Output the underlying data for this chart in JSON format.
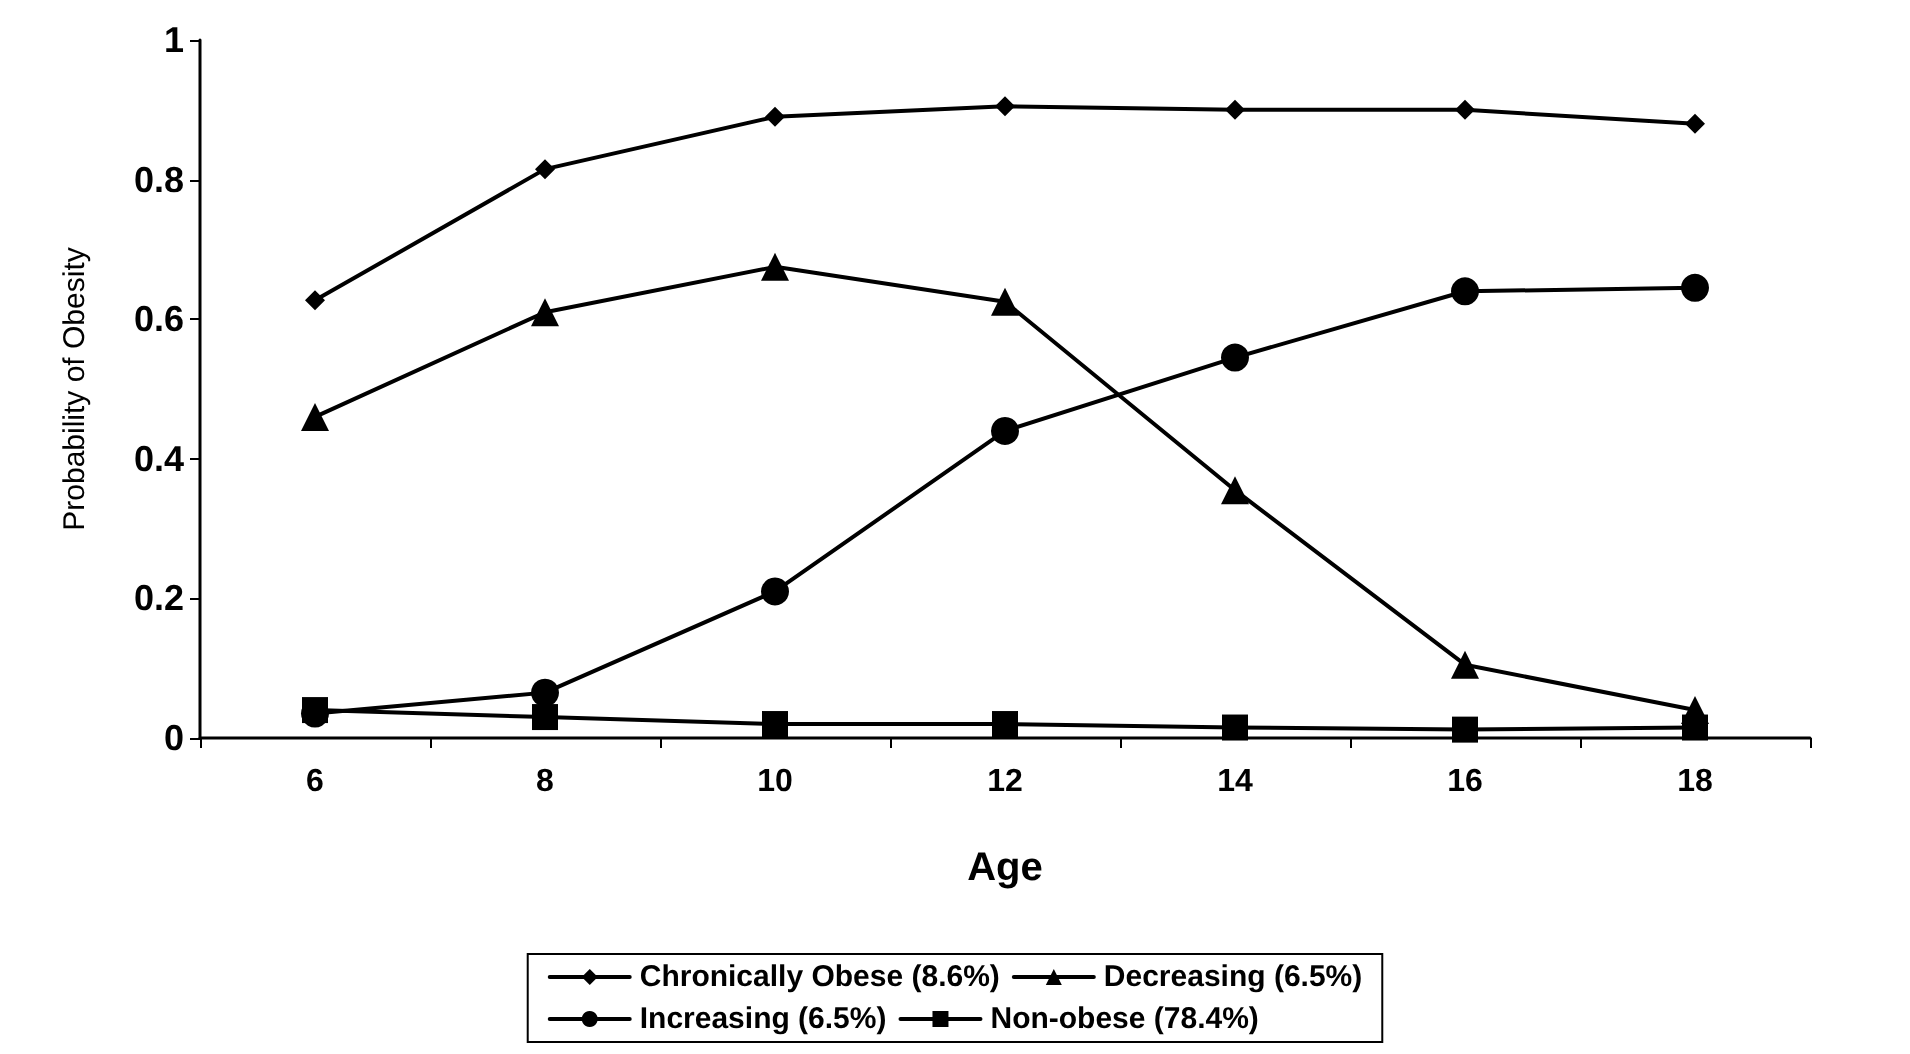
{
  "chart_data": {
    "type": "line",
    "xlabel": "Age",
    "ylabel": "Probability of Obesity",
    "categories": [
      "6",
      "8",
      "10",
      "12",
      "14",
      "16",
      "18"
    ],
    "ylim": [
      0,
      1
    ],
    "yticks": [
      0,
      0.2,
      0.4,
      0.6,
      0.8,
      1
    ],
    "grid": false,
    "legend": "bottom",
    "line_style": "solid",
    "series": [
      {
        "name": "Chronically Obese (8.6%)",
        "color": "#000000",
        "marker": "diamond",
        "values": [
          0.627,
          0.815,
          0.89,
          0.905,
          0.9,
          0.9,
          0.88
        ]
      },
      {
        "name": "Decreasing (6.5%)",
        "color": "#000000",
        "marker": "triangle",
        "values": [
          0.46,
          0.61,
          0.675,
          0.625,
          0.355,
          0.105,
          0.04
        ]
      },
      {
        "name": "Increasing (6.5%)",
        "color": "#000000",
        "marker": "circle",
        "values": [
          0.035,
          0.065,
          0.21,
          0.44,
          0.545,
          0.64,
          0.645
        ]
      },
      {
        "name": "Non-obese (78.4%)",
        "color": "#000000",
        "marker": "square",
        "values": [
          0.04,
          0.03,
          0.02,
          0.02,
          0.015,
          0.012,
          0.015
        ]
      }
    ]
  }
}
